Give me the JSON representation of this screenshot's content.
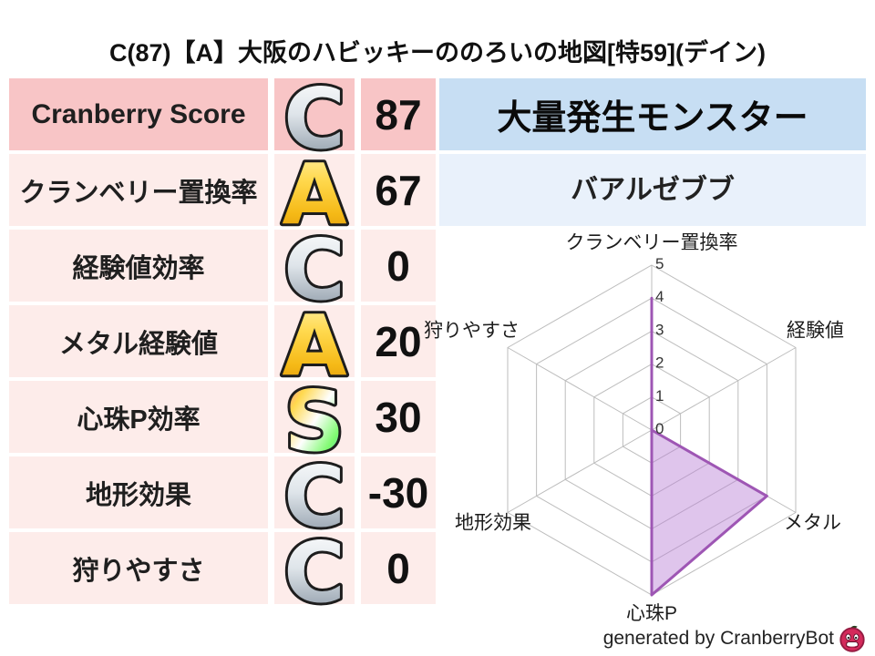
{
  "page": {
    "title": "C(87)【A】大阪のハビッキーののろいの地図[特59](デイン)",
    "credit": "generated by CranberryBot"
  },
  "score_table": {
    "rows": [
      {
        "label": "Cranberry Score",
        "grade": "C",
        "grade_style": "silver",
        "value": "87"
      },
      {
        "label": "クランベリー置換率",
        "grade": "A",
        "grade_style": "gold",
        "value": "67"
      },
      {
        "label": "経験値効率",
        "grade": "C",
        "grade_style": "silver",
        "value": "0"
      },
      {
        "label": "メタル経験値",
        "grade": "A",
        "grade_style": "gold",
        "value": "20"
      },
      {
        "label": "心珠P効率",
        "grade": "S",
        "grade_style": "rainbow",
        "value": "30"
      },
      {
        "label": "地形効果",
        "grade": "C",
        "grade_style": "silver",
        "value": "-30"
      },
      {
        "label": "狩りやすさ",
        "grade": "C",
        "grade_style": "silver",
        "value": "0"
      }
    ]
  },
  "monster_panel": {
    "header": "大量発生モンスター",
    "name": "バアルゼブブ"
  },
  "chart_data": {
    "type": "radar",
    "categories": [
      "クランベリー置換率",
      "経験値",
      "メタル",
      "心珠P",
      "地形効果",
      "狩りやすさ"
    ],
    "values": [
      4,
      0,
      4,
      5,
      0,
      0
    ],
    "ticks": [
      0,
      1,
      2,
      3,
      4,
      5
    ],
    "max": 5,
    "ylim": [
      0,
      5
    ],
    "grid": true,
    "legend": false,
    "line_color": "#9e56b4",
    "fill_color": "#b77fd4",
    "grid_color": "#bdbdbd"
  },
  "colors": {
    "row_highlight_bg": "#f8c5c6",
    "row_bg": "#fdecea",
    "monster_header_bg": "#c7def3",
    "monster_name_bg": "#e9f1fb",
    "grade_silver": "#c3ccd4",
    "grade_gold": "#ffd94e",
    "grade_rainbow": "multicolor"
  }
}
